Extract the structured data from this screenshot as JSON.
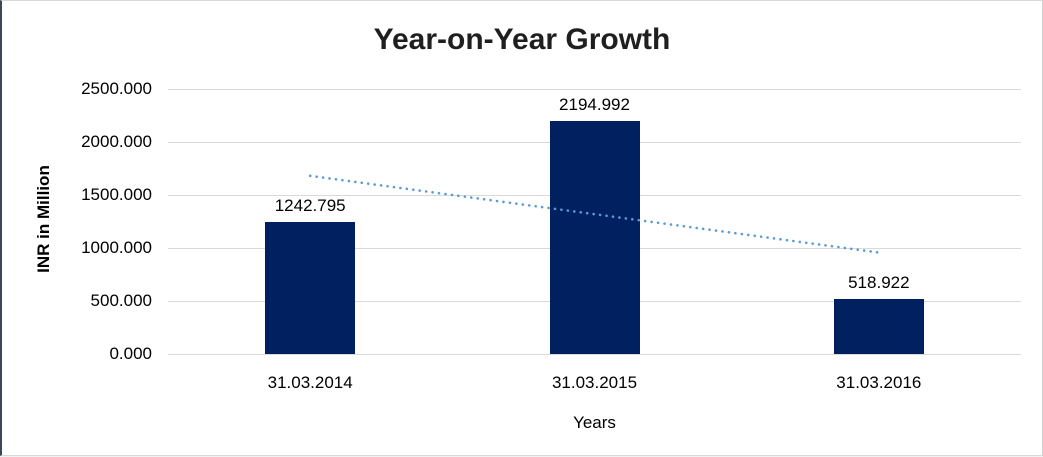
{
  "chart_data": {
    "type": "bar",
    "title": "Year-on-Year Growth",
    "xlabel": "Years",
    "ylabel": "INR in Million",
    "categories": [
      "31.03.2014",
      "31.03.2015",
      "31.03.2016"
    ],
    "values": [
      1242.795,
      2194.992,
      518.922
    ],
    "value_labels": [
      "1242.795",
      "2194.992",
      "518.922"
    ],
    "ylim": [
      0,
      2500
    ],
    "ytick_step": 500,
    "ytick_labels": [
      "0.000",
      "500.000",
      "1000.000",
      "1500.000",
      "2000.000",
      "2500.000"
    ],
    "grid": true,
    "legend": "none",
    "bar_color": "#002060",
    "gridline_color": "#d9d9d9",
    "trendline": {
      "type": "linear",
      "style": "dotted",
      "color": "#5b9bd5",
      "start_value": 1680.85,
      "end_value": 956.96
    }
  }
}
